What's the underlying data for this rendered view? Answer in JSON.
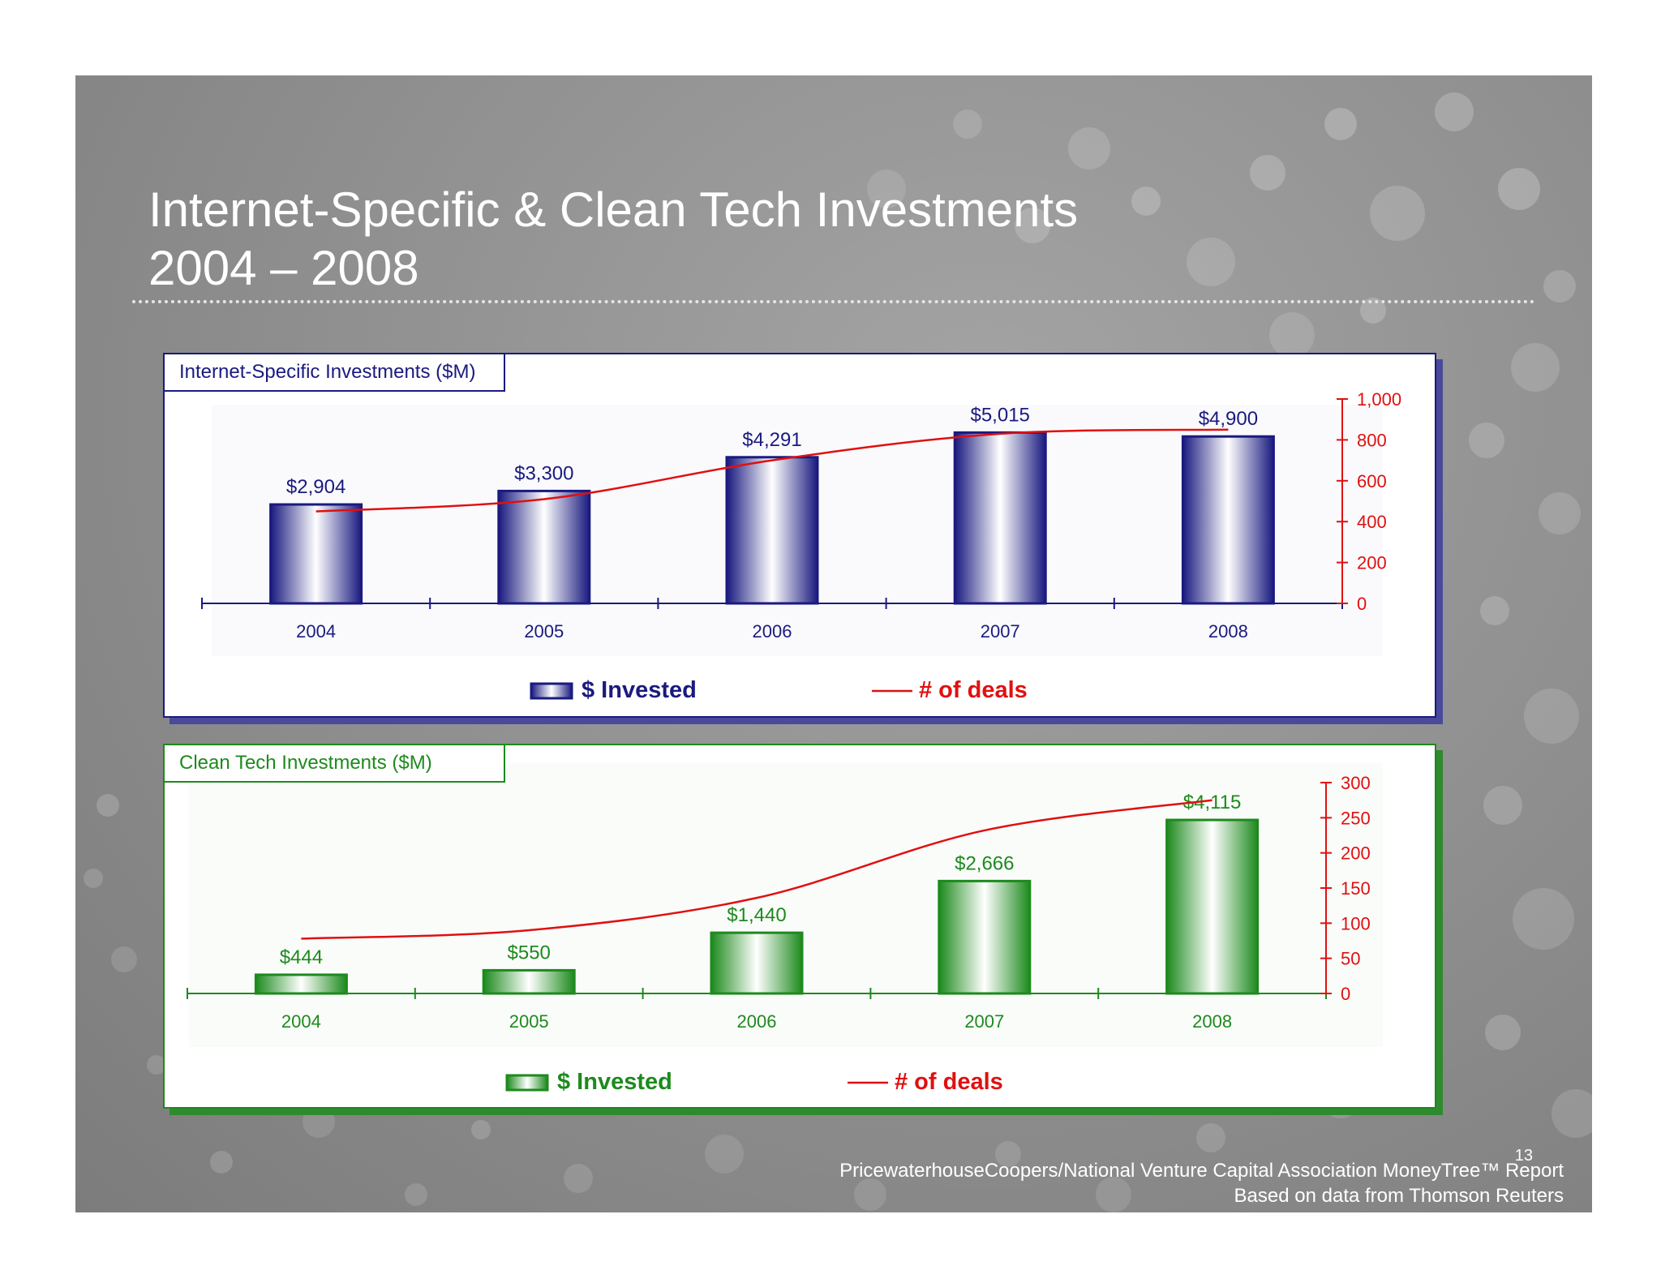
{
  "title": {
    "line1": "Internet-Specific & Clean Tech Investments",
    "line2": "2004 – 2008"
  },
  "source": {
    "line1": "PricewaterhouseCoopers/National Venture Capital Association MoneyTree™ Report",
    "line2": "Based on data from Thomson Reuters"
  },
  "page_number": "13",
  "colors": {
    "internet_accent": "#1a1a80",
    "clean_accent": "#1d8a1d",
    "deals_line": "#e01010"
  },
  "chart_data": [
    {
      "id": "internet",
      "type": "bar",
      "title": "Internet-Specific Investments ($M)",
      "categories": [
        "2004",
        "2005",
        "2006",
        "2007",
        "2008"
      ],
      "series": [
        {
          "name": "$ Invested",
          "axis": "left",
          "values": [
            2904,
            3300,
            4291,
            5015,
            4900
          ],
          "labels": [
            "$2,904",
            "$3,300",
            "$4,291",
            "$5,015",
            "$4,900"
          ]
        },
        {
          "name": "# of deals",
          "type": "line",
          "axis": "right",
          "values": [
            450,
            510,
            700,
            830,
            850
          ]
        }
      ],
      "ylim_left": [
        0,
        6000
      ],
      "ylim_right": [
        0,
        1000
      ],
      "right_ticks": [
        0,
        200,
        400,
        600,
        800,
        1000
      ],
      "right_tick_labels": [
        "0",
        "200",
        "400",
        "600",
        "800",
        "1,000"
      ],
      "legend": [
        "$ Invested",
        "# of deals"
      ],
      "legend_position": "bottom"
    },
    {
      "id": "clean",
      "type": "bar",
      "title": "Clean Tech Investments ($M)",
      "categories": [
        "2004",
        "2005",
        "2006",
        "2007",
        "2008"
      ],
      "series": [
        {
          "name": "$ Invested",
          "axis": "left",
          "values": [
            444,
            550,
            1440,
            2666,
            4115
          ],
          "labels": [
            "$444",
            "$550",
            "$1,440",
            "$2,666",
            "$4,115"
          ]
        },
        {
          "name": "# of deals",
          "type": "line",
          "axis": "right",
          "values": [
            78,
            90,
            136,
            232,
            275
          ]
        }
      ],
      "ylim_left": [
        0,
        5000
      ],
      "ylim_right": [
        0,
        300
      ],
      "right_ticks": [
        0,
        50,
        100,
        150,
        200,
        250,
        300
      ],
      "right_tick_labels": [
        "0",
        "50",
        "100",
        "150",
        "200",
        "250",
        "300"
      ],
      "legend": [
        "$ Invested",
        "# of deals"
      ],
      "legend_position": "bottom"
    }
  ]
}
